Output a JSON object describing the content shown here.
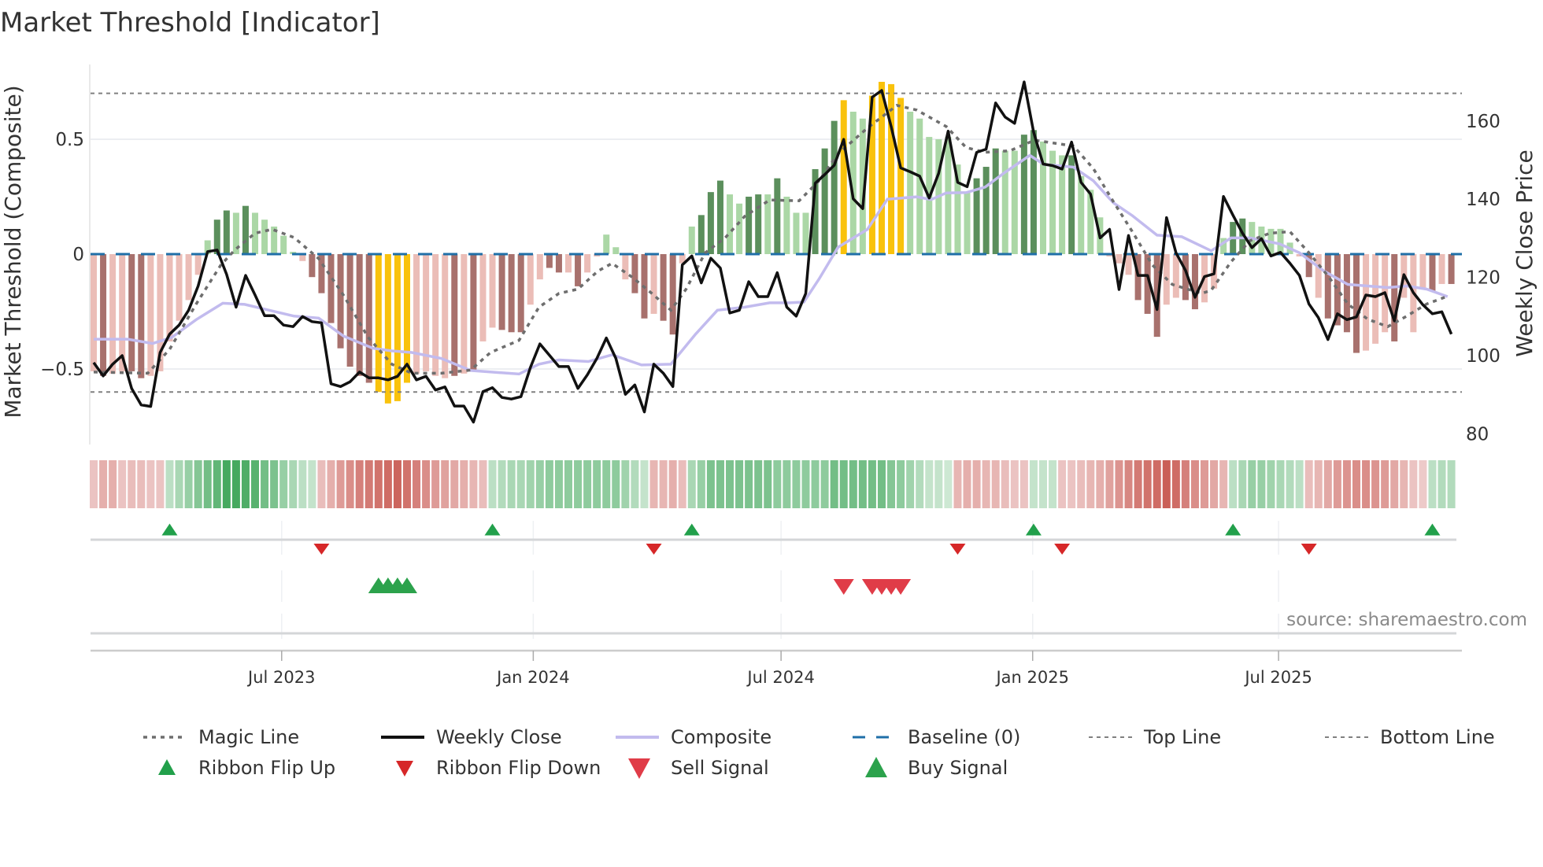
{
  "chart_data": {
    "type": "bar",
    "title": "Market Threshold [Indicator]",
    "ylabel": "Market Threshold (Composite)",
    "y2label": "Weekly Close Price",
    "ylim": [
      -0.87,
      0.83
    ],
    "y2lim": [
      77,
      171
    ],
    "yticks": [
      {
        "v": 0.5,
        "label": "0.5"
      },
      {
        "v": 0,
        "label": "0"
      },
      {
        "v": -0.5,
        "label": "−0.5"
      }
    ],
    "y2ticks": [
      {
        "v": 160,
        "label": "160"
      },
      {
        "v": 140,
        "label": "140"
      },
      {
        "v": 120,
        "label": "120"
      },
      {
        "v": 100,
        "label": "100"
      },
      {
        "v": 80,
        "label": "80"
      }
    ],
    "xticks": [
      {
        "week": 19.8,
        "label": "Jul 2023"
      },
      {
        "week": 46.3,
        "label": "Jan 2024"
      },
      {
        "week": 72.4,
        "label": "Jul 2024"
      },
      {
        "week": 98.9,
        "label": "Jan 2025"
      },
      {
        "week": 124.8,
        "label": "Jul 2025"
      }
    ],
    "top_line": 0.7,
    "bottom_line": -0.6,
    "baseline": 0,
    "composite_bars": [
      -0.51,
      -0.53,
      -0.52,
      -0.51,
      -0.51,
      -0.54,
      -0.53,
      -0.51,
      -0.38,
      -0.29,
      -0.2,
      -0.09,
      0.06,
      0.15,
      0.19,
      0.18,
      0.21,
      0.18,
      0.15,
      0.12,
      0.08,
      0.01,
      -0.03,
      -0.1,
      -0.17,
      -0.3,
      -0.41,
      -0.49,
      -0.53,
      -0.56,
      -0.6,
      -0.65,
      -0.64,
      -0.56,
      -0.52,
      -0.51,
      -0.53,
      -0.54,
      -0.53,
      -0.52,
      -0.51,
      -0.38,
      -0.32,
      -0.33,
      -0.34,
      -0.34,
      -0.22,
      -0.11,
      -0.06,
      -0.08,
      -0.08,
      -0.14,
      -0.08,
      -0.01,
      0.085,
      0.03,
      -0.11,
      -0.17,
      -0.28,
      -0.26,
      -0.29,
      -0.35,
      -0.04,
      0.12,
      0.17,
      0.27,
      0.32,
      0.26,
      0.22,
      0.25,
      0.26,
      0.26,
      0.33,
      0.25,
      0.18,
      0.18,
      0.37,
      0.46,
      0.58,
      0.67,
      0.62,
      0.59,
      0.69,
      0.75,
      0.74,
      0.68,
      0.62,
      0.59,
      0.51,
      0.5,
      0.51,
      0.39,
      0.27,
      0.33,
      0.38,
      0.46,
      0.45,
      0.45,
      0.52,
      0.54,
      0.49,
      0.45,
      0.43,
      0.43,
      0.34,
      0.28,
      0.16,
      -0.01,
      -0.04,
      -0.09,
      -0.2,
      -0.26,
      -0.36,
      -0.22,
      -0.19,
      -0.2,
      -0.24,
      -0.21,
      -0.15,
      0.07,
      0.14,
      0.155,
      0.14,
      0.12,
      0.11,
      0.11,
      0.05,
      -0.01,
      -0.1,
      -0.19,
      -0.28,
      -0.31,
      -0.34,
      -0.43,
      -0.42,
      -0.39,
      -0.34,
      -0.38,
      -0.19,
      -0.34,
      -0.15,
      -0.16,
      -0.13,
      -0.13
    ],
    "bar_classes": "pdppddppppppLGGLGLLLLLpdddddddyyyyppppdpdppdddppddpdppLLpddpddpLGGGLLGGLGLLLGGGyLLyyyyLLLLLLLGGGLLGGLLLGLLLpppdddppddppLGGLLLLLpdpddddpppdpppdpd",
    "bar_class_legend": {
      "p": "weak-negative",
      "d": "strong-negative",
      "L": "weak-positive",
      "G": "strong-positive",
      "y": "extreme"
    },
    "weekly_close": [
      98.2,
      94.8,
      97.8,
      100,
      91.6,
      87.4,
      87,
      100.8,
      105.5,
      107.8,
      111.6,
      117.8,
      126.6,
      127,
      120.8,
      112.4,
      120.5,
      115.5,
      110.2,
      110.2,
      107.8,
      107.4,
      110,
      108.7,
      108.4,
      92.8,
      92.1,
      93.3,
      95.8,
      94.3,
      94.3,
      93.8,
      94.7,
      97.8,
      93.8,
      94.7,
      91.2,
      92,
      87.1,
      87.1,
      83,
      90.8,
      91.8,
      89.3,
      88.9,
      89.5,
      97,
      103,
      100.1,
      97.2,
      97.2,
      91.6,
      95.1,
      99.3,
      104.5,
      99.3,
      90.1,
      92.5,
      85.6,
      97.8,
      95.5,
      92.1,
      123.2,
      125.5,
      118.6,
      124.9,
      122.4,
      110.9,
      111.6,
      118.9,
      115.1,
      115.1,
      121.2,
      112.4,
      110.1,
      115.9,
      144.1,
      146.3,
      148.7,
      155.3,
      140.1,
      137.6,
      166.1,
      167.8,
      158.6,
      148,
      147,
      145.9,
      140.3,
      146.6,
      157.4,
      144.3,
      143.2,
      152,
      152.8,
      164.6,
      161,
      159.4,
      170,
      157.2,
      149,
      148.6,
      147.7,
      154.6,
      144.3,
      141.3,
      130.1,
      132.3,
      116.9,
      130.7,
      120.5,
      120.5,
      111.8,
      135.3,
      126.3,
      121.8,
      114.9,
      120.2,
      120.9,
      140.7,
      135.9,
      131.3,
      127.6,
      129.9,
      125.5,
      126.4,
      123.6,
      120.5,
      113.2,
      109.7,
      104.1,
      110.7,
      109.2,
      109.9,
      115.5,
      115.1,
      116.1,
      108.9,
      120.7,
      116.1,
      113,
      110.7,
      111.2,
      105.5
    ],
    "magic_line": [
      [
        0,
        95.8
      ],
      [
        5.7,
        95.5
      ],
      [
        8,
        101.6
      ],
      [
        10.8,
        113.2
      ],
      [
        13.4,
        123.2
      ],
      [
        14.9,
        127.1
      ],
      [
        17,
        131.3
      ],
      [
        18.8,
        132.3
      ],
      [
        21.1,
        130.2
      ],
      [
        23.7,
        124.8
      ],
      [
        26.3,
        115.5
      ],
      [
        28.9,
        104.7
      ],
      [
        31.4,
        97.8
      ],
      [
        33.5,
        95.5
      ],
      [
        36.6,
        95.5
      ],
      [
        39.7,
        96.3
      ],
      [
        41.8,
        100.8
      ],
      [
        44.8,
        103.9
      ],
      [
        46.9,
        112.4
      ],
      [
        49,
        115.9
      ],
      [
        51,
        117
      ],
      [
        53.1,
        121.6
      ],
      [
        54.6,
        123.6
      ],
      [
        56.7,
        120.1
      ],
      [
        58.8,
        115.9
      ],
      [
        60.8,
        111.6
      ],
      [
        62.4,
        117
      ],
      [
        64.4,
        126.3
      ],
      [
        66.5,
        130.1
      ],
      [
        68.6,
        135.7
      ],
      [
        71.2,
        139.8
      ],
      [
        74.3,
        139.6
      ],
      [
        76.4,
        144.7
      ],
      [
        78.4,
        151.6
      ],
      [
        81.5,
        158.2
      ],
      [
        84.6,
        164
      ],
      [
        86.7,
        162.8
      ],
      [
        89.8,
        158.6
      ],
      [
        91.9,
        153.2
      ],
      [
        93.9,
        152
      ],
      [
        96.5,
        152.4
      ],
      [
        99.1,
        155.1
      ],
      [
        103.2,
        153.6
      ],
      [
        105.3,
        147.8
      ],
      [
        107.4,
        139.4
      ],
      [
        109.4,
        131.7
      ],
      [
        111.5,
        123.2
      ],
      [
        113.6,
        118.2
      ],
      [
        116.7,
        115.9
      ],
      [
        117.7,
        116.7
      ],
      [
        119.8,
        124
      ],
      [
        121.8,
        129.4
      ],
      [
        123.9,
        131.3
      ],
      [
        126,
        131.7
      ],
      [
        128,
        126.3
      ],
      [
        130.1,
        120.1
      ],
      [
        132.1,
        113.2
      ],
      [
        134.2,
        109.3
      ],
      [
        136.3,
        107.4
      ],
      [
        138.3,
        110.1
      ],
      [
        140.4,
        113.2
      ],
      [
        142.5,
        115.1
      ]
    ],
    "composite_line": [
      [
        0,
        104.2
      ],
      [
        3.6,
        104.2
      ],
      [
        6.2,
        103.1
      ],
      [
        8.2,
        104.6
      ],
      [
        10.8,
        109.2
      ],
      [
        13.6,
        113.4
      ],
      [
        15.9,
        113.1
      ],
      [
        18,
        111.9
      ],
      [
        21.1,
        110.1
      ],
      [
        23.7,
        109.6
      ],
      [
        26.3,
        105
      ],
      [
        29.4,
        101.9
      ],
      [
        31.4,
        101.2
      ],
      [
        33.5,
        100.8
      ],
      [
        36.6,
        99.3
      ],
      [
        39.7,
        96.2
      ],
      [
        44.8,
        95.3
      ],
      [
        46.9,
        97.8
      ],
      [
        49,
        98.9
      ],
      [
        52.1,
        98.5
      ],
      [
        54.6,
        100.2
      ],
      [
        57.7,
        97.6
      ],
      [
        60.8,
        97.8
      ],
      [
        63.4,
        105.5
      ],
      [
        65.7,
        111.6
      ],
      [
        68.6,
        112.4
      ],
      [
        71.2,
        113.5
      ],
      [
        73.3,
        113.5
      ],
      [
        74.8,
        113.7
      ],
      [
        76.4,
        119.6
      ],
      [
        78.4,
        127.7
      ],
      [
        80.5,
        130.8
      ],
      [
        81.5,
        132.3
      ],
      [
        83.6,
        140
      ],
      [
        86.7,
        140.6
      ],
      [
        88.2,
        139.9
      ],
      [
        89.8,
        141.6
      ],
      [
        91.9,
        141.7
      ],
      [
        93.9,
        143.1
      ],
      [
        96,
        146.9
      ],
      [
        98.6,
        151.2
      ],
      [
        100.1,
        148.9
      ],
      [
        103.2,
        148.2
      ],
      [
        105.3,
        144.7
      ],
      [
        107.4,
        139.1
      ],
      [
        109.4,
        135.8
      ],
      [
        112,
        130.8
      ],
      [
        114.6,
        130.4
      ],
      [
        117.7,
        126.8
      ],
      [
        119.8,
        130.1
      ],
      [
        121.8,
        130.1
      ],
      [
        124.9,
        128.6
      ],
      [
        127,
        126.3
      ],
      [
        129.6,
        121.6
      ],
      [
        132.1,
        118.2
      ],
      [
        136.3,
        117.4
      ],
      [
        138.3,
        117.8
      ],
      [
        140.4,
        117
      ],
      [
        142.6,
        115.1
      ]
    ],
    "ribbon": [
      -0.2,
      -0.35,
      -0.35,
      -0.2,
      -0.25,
      -0.25,
      -0.2,
      -0.2,
      0.25,
      0.35,
      0.45,
      0.55,
      0.65,
      0.75,
      0.9,
      0.9,
      0.85,
      0.8,
      0.65,
      0.6,
      0.45,
      0.35,
      0.25,
      0.2,
      -0.25,
      -0.35,
      -0.5,
      -0.6,
      -0.7,
      -0.75,
      -0.8,
      -0.85,
      -0.9,
      -0.8,
      -0.7,
      -0.6,
      -0.5,
      -0.45,
      -0.4,
      -0.35,
      -0.3,
      -0.25,
      0.25,
      0.3,
      0.35,
      0.35,
      0.4,
      0.45,
      0.5,
      0.5,
      0.5,
      0.5,
      0.5,
      0.5,
      0.5,
      0.5,
      0.4,
      0.3,
      0.2,
      -0.3,
      -0.3,
      -0.35,
      -0.25,
      0.35,
      0.45,
      0.6,
      0.6,
      0.6,
      0.6,
      0.6,
      0.6,
      0.6,
      0.5,
      0.5,
      0.5,
      0.5,
      0.5,
      0.5,
      0.65,
      0.65,
      0.65,
      0.65,
      0.65,
      0.65,
      0.55,
      0.5,
      0.4,
      0.3,
      0.2,
      0.2,
      0.15,
      -0.3,
      -0.35,
      -0.35,
      -0.3,
      -0.3,
      -0.25,
      -0.2,
      -0.2,
      0.2,
      0.2,
      0.2,
      -0.2,
      -0.2,
      -0.25,
      -0.3,
      -0.35,
      -0.45,
      -0.55,
      -0.65,
      -0.75,
      -0.8,
      -0.85,
      -0.95,
      -0.85,
      -0.7,
      -0.6,
      -0.5,
      -0.4,
      -0.3,
      0.25,
      0.35,
      0.45,
      0.45,
      0.4,
      0.35,
      0.3,
      0.25,
      -0.25,
      -0.3,
      -0.4,
      -0.5,
      -0.55,
      -0.6,
      -0.6,
      -0.55,
      -0.5,
      -0.4,
      -0.3,
      -0.2,
      -0.15,
      0.25,
      0.3,
      0.3
    ],
    "ribbon_flip_up": [
      8,
      42,
      63,
      99,
      120,
      141
    ],
    "ribbon_flip_down": [
      24,
      59,
      91,
      102,
      128
    ],
    "buy_signals": [
      30,
      31,
      32,
      33
    ],
    "sell_signals": [
      79,
      82,
      83,
      84,
      85
    ],
    "colors": {
      "strong_negative": "#a8716d",
      "weak_negative": "#ebbdb7",
      "strong_positive": "#5b8f5c",
      "weak_positive": "#abd7a6",
      "extreme": "#f9c20c",
      "close": "#111111",
      "magic": "#6e6e6e",
      "composite": "#c2bbee",
      "baseline": "#1f6fa8",
      "threshold": "#808080",
      "flip_up": "#22a04b",
      "flip_down": "#d62728",
      "buy": "#2ca24c",
      "sell": "#e03c48"
    },
    "legend": [
      {
        "key": "magic",
        "label": "Magic Line"
      },
      {
        "key": "close",
        "label": "Weekly Close"
      },
      {
        "key": "composite",
        "label": "Composite"
      },
      {
        "key": "baseline",
        "label": "Baseline (0)"
      },
      {
        "key": "top",
        "label": "Top Line"
      },
      {
        "key": "bottom",
        "label": "Bottom Line"
      },
      {
        "key": "flipup",
        "label": "Ribbon Flip Up"
      },
      {
        "key": "flipdown",
        "label": "Ribbon Flip Down"
      },
      {
        "key": "sell",
        "label": "Sell Signal"
      },
      {
        "key": "buy",
        "label": "Buy Signal"
      }
    ],
    "source": "source: sharemaestro.com"
  }
}
